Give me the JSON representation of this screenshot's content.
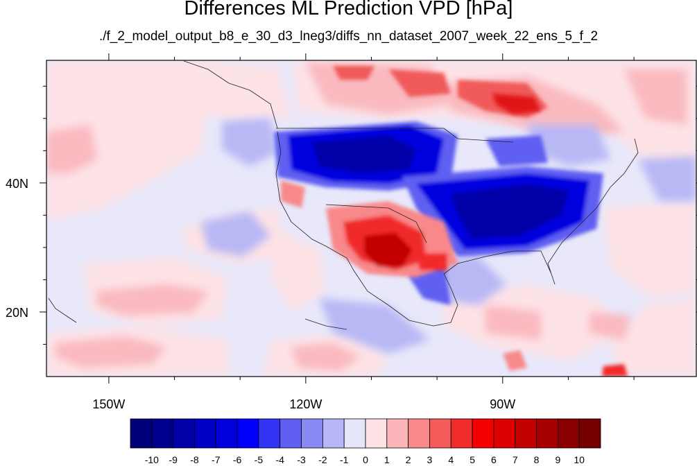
{
  "title": "Differences ML Prediction VPD [hPa]",
  "subtitle": "./f_2_model_output_b8_e_30_d3_lneg3/diffs_nn_dataset_2007_week_22_ens_5_f_2",
  "map": {
    "lon_range": [
      -159.5,
      -60.5
    ],
    "lat_range": [
      10,
      59
    ],
    "lon_labels": [
      {
        "lon": -150,
        "label": "150W"
      },
      {
        "lon": -120,
        "label": "120W"
      },
      {
        "lon": -90,
        "label": "90W"
      }
    ],
    "lat_labels": [
      {
        "lat": 40,
        "label": "40N"
      },
      {
        "lat": 20,
        "label": "20N"
      }
    ],
    "colors": {
      "neutral": "#e8e8fa",
      "light_pink": "#fde2e6",
      "frame": "#000000"
    }
  },
  "colorbar": {
    "labels": [
      "-10",
      "-9",
      "-8",
      "-7",
      "-6",
      "-5",
      "-4",
      "-3",
      "-2",
      "-1",
      "0",
      "1",
      "2",
      "3",
      "4",
      "5",
      "6",
      "7",
      "8",
      "9",
      "10"
    ],
    "colors": [
      "#00007a",
      "#00008f",
      "#0000a8",
      "#0000c4",
      "#0000df",
      "#0000fa",
      "#3333f5",
      "#5f5ff2",
      "#8a8af5",
      "#b6b6f8",
      "#e6e6fa",
      "#fde2e6",
      "#fcb6ba",
      "#f8888a",
      "#f45a5a",
      "#f02c2c",
      "#f40000",
      "#dd0000",
      "#c20000",
      "#a60000",
      "#8a0000",
      "#750000"
    ]
  }
}
